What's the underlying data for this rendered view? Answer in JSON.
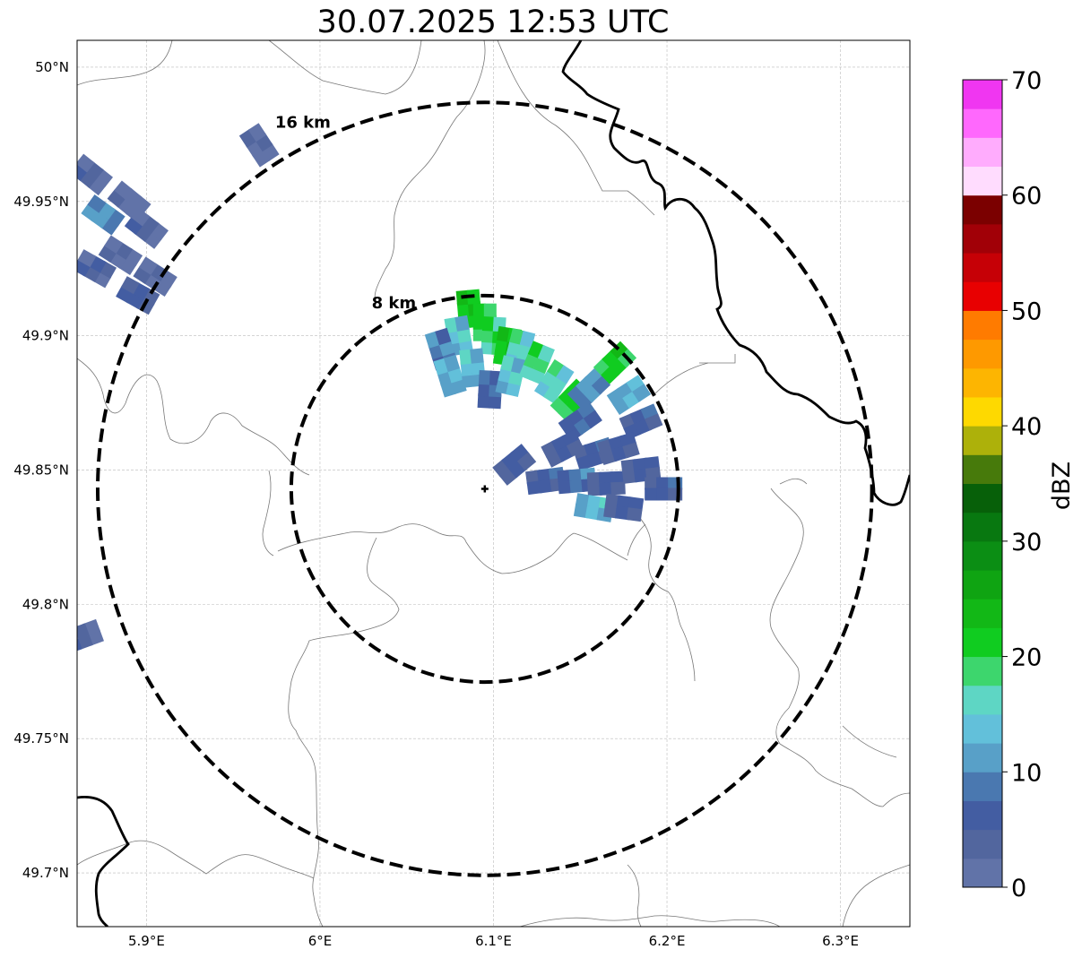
{
  "title": "30.07.2025 12:53 UTC",
  "map": {
    "lon_range": [
      5.86,
      6.34
    ],
    "lat_range": [
      49.68,
      50.01
    ],
    "lon_ticks": [
      {
        "value": 5.9,
        "label": "5.9°E"
      },
      {
        "value": 6.0,
        "label": "6°E"
      },
      {
        "value": 6.1,
        "label": "6.1°E"
      },
      {
        "value": 6.2,
        "label": "6.2°E"
      },
      {
        "value": 6.3,
        "label": "6.3°E"
      }
    ],
    "lat_ticks": [
      {
        "value": 50.0,
        "label": "50°N"
      },
      {
        "value": 49.95,
        "label": "49.95°N"
      },
      {
        "value": 49.9,
        "label": "49.9°N"
      },
      {
        "value": 49.85,
        "label": "49.85°N"
      },
      {
        "value": 49.8,
        "label": "49.8°N"
      },
      {
        "value": 49.75,
        "label": "49.75°N"
      },
      {
        "value": 49.7,
        "label": "49.7°N"
      }
    ],
    "radar_site": {
      "lon": 6.095,
      "lat": 49.843
    },
    "range_rings": [
      {
        "label": "8 km",
        "radius_km": 8
      },
      {
        "label": "16 km",
        "radius_km": 16
      }
    ]
  },
  "colorbar": {
    "label": "dBZ",
    "min": 0,
    "max": 70,
    "tick_labels": [
      "0",
      "10",
      "20",
      "30",
      "40",
      "50",
      "60",
      "70"
    ],
    "colors": [
      "#6173a8",
      "#52669e",
      "#435da2",
      "#4a78b0",
      "#58a0c8",
      "#62c0da",
      "#5ed6c4",
      "#3dd66d",
      "#10cc20",
      "#12b816",
      "#0fa412",
      "#0b8e14",
      "#087810",
      "#076009",
      "#477a0b",
      "#adb10a",
      "#fed900",
      "#fdb501",
      "#fe9900",
      "#ff7b00",
      "#e80001",
      "#c60006",
      "#a10007",
      "#7b0000",
      "#ffdcfe",
      "#ffacfd",
      "#ff68fd",
      "#f036f1"
    ]
  },
  "chart_data": {
    "type": "heatmap",
    "title": "30.07.2025 12:53 UTC",
    "xlabel": "",
    "ylabel": "",
    "colorbar_label": "dBZ",
    "value_range": [
      0,
      70
    ],
    "x_ticks": [
      "5.9°E",
      "6°E",
      "6.1°E",
      "6.2°E",
      "6.3°E"
    ],
    "y_ticks": [
      "50°N",
      "49.95°N",
      "49.9°N",
      "49.85°N",
      "49.8°N",
      "49.75°N",
      "49.7°N"
    ],
    "echo_cells": [
      {
        "lon": 6.086,
        "lat": 49.91,
        "dbz": 22
      },
      {
        "lon": 6.095,
        "lat": 49.905,
        "dbz": 20
      },
      {
        "lon": 6.1,
        "lat": 49.9,
        "dbz": 19
      },
      {
        "lon": 6.108,
        "lat": 49.896,
        "dbz": 22
      },
      {
        "lon": 6.115,
        "lat": 49.895,
        "dbz": 16
      },
      {
        "lon": 6.08,
        "lat": 49.9,
        "dbz": 14
      },
      {
        "lon": 6.07,
        "lat": 49.895,
        "dbz": 9
      },
      {
        "lon": 6.075,
        "lat": 49.885,
        "dbz": 12
      },
      {
        "lon": 6.088,
        "lat": 49.888,
        "dbz": 13
      },
      {
        "lon": 6.098,
        "lat": 49.88,
        "dbz": 7
      },
      {
        "lon": 6.11,
        "lat": 49.885,
        "dbz": 14
      },
      {
        "lon": 6.125,
        "lat": 49.89,
        "dbz": 18
      },
      {
        "lon": 6.135,
        "lat": 49.883,
        "dbz": 16
      },
      {
        "lon": 6.145,
        "lat": 49.876,
        "dbz": 20
      },
      {
        "lon": 6.155,
        "lat": 49.88,
        "dbz": 10
      },
      {
        "lon": 6.17,
        "lat": 49.89,
        "dbz": 21
      },
      {
        "lon": 6.178,
        "lat": 49.878,
        "dbz": 12
      },
      {
        "lon": 6.185,
        "lat": 49.868,
        "dbz": 6
      },
      {
        "lon": 6.15,
        "lat": 49.868,
        "dbz": 7
      },
      {
        "lon": 6.14,
        "lat": 49.858,
        "dbz": 5
      },
      {
        "lon": 6.158,
        "lat": 49.856,
        "dbz": 6
      },
      {
        "lon": 6.172,
        "lat": 49.858,
        "dbz": 5
      },
      {
        "lon": 6.13,
        "lat": 49.846,
        "dbz": 6
      },
      {
        "lon": 6.148,
        "lat": 49.846,
        "dbz": 8
      },
      {
        "lon": 6.165,
        "lat": 49.845,
        "dbz": 5
      },
      {
        "lon": 6.185,
        "lat": 49.85,
        "dbz": 5
      },
      {
        "lon": 6.198,
        "lat": 49.843,
        "dbz": 6
      },
      {
        "lon": 6.158,
        "lat": 49.836,
        "dbz": 13
      },
      {
        "lon": 6.175,
        "lat": 49.836,
        "dbz": 5
      },
      {
        "lon": 6.112,
        "lat": 49.852,
        "dbz": 5
      },
      {
        "lon": 5.965,
        "lat": 49.971,
        "dbz": 2
      },
      {
        "lon": 5.868,
        "lat": 49.96,
        "dbz": 3
      },
      {
        "lon": 5.875,
        "lat": 49.945,
        "dbz": 10
      },
      {
        "lon": 5.89,
        "lat": 49.95,
        "dbz": 1
      },
      {
        "lon": 5.9,
        "lat": 49.94,
        "dbz": 3
      },
      {
        "lon": 5.885,
        "lat": 49.93,
        "dbz": 2
      },
      {
        "lon": 5.87,
        "lat": 49.925,
        "dbz": 4
      },
      {
        "lon": 5.905,
        "lat": 49.922,
        "dbz": 2
      },
      {
        "lon": 5.895,
        "lat": 49.915,
        "dbz": 5
      },
      {
        "lon": 5.863,
        "lat": 49.788,
        "dbz": 3
      }
    ]
  }
}
